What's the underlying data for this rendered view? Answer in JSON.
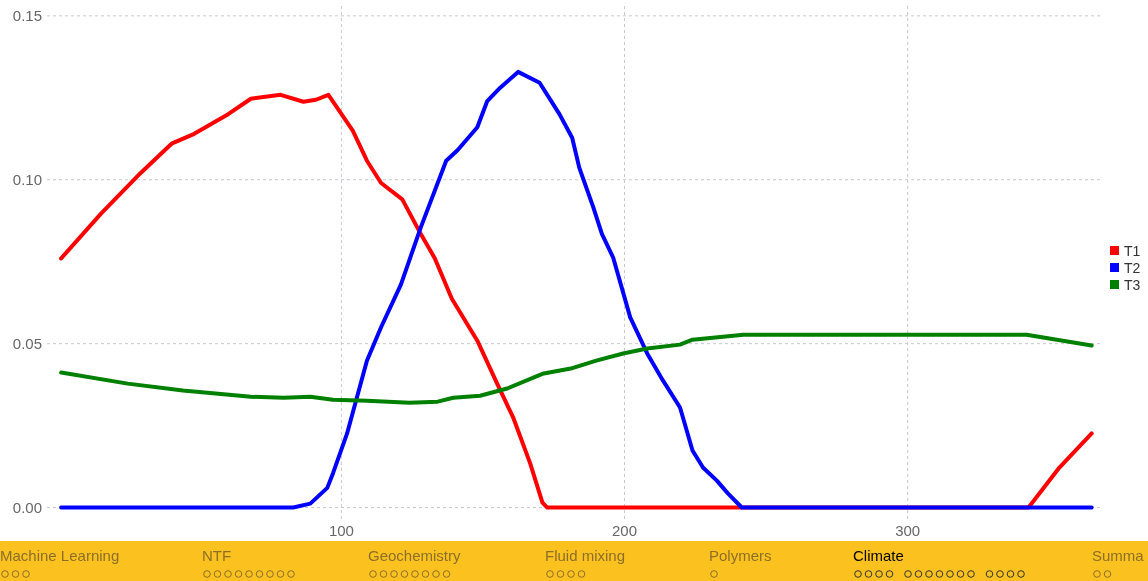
{
  "chart_data": {
    "type": "line",
    "xlim": [
      -4,
      369
    ],
    "xticks": [
      100,
      200,
      300
    ],
    "ylim": [
      -0.0035,
      0.153
    ],
    "yticks": [
      {
        "value": 0,
        "label": "0.00"
      },
      {
        "value": 0.05,
        "label": "0.05"
      },
      {
        "value": 0.1,
        "label": "0.10"
      },
      {
        "value": 0.15,
        "label": "0.15"
      }
    ],
    "grid": true,
    "legend": "right",
    "series": [
      {
        "name": "T1",
        "color": "#ff0000",
        "x": [
          1,
          15,
          29,
          40,
          48,
          60,
          68,
          78.5,
          86.6,
          91,
          95.4,
          104,
          109,
          114,
          121.5,
          128,
          133,
          139,
          148,
          155,
          160.7,
          166.7,
          171,
          172.7,
          200,
          250,
          300,
          342.7,
          353.6,
          365
        ],
        "values": [
          0.076,
          0.0896,
          0.102,
          0.111,
          0.114,
          0.12,
          0.1247,
          0.1259,
          0.1238,
          0.1244,
          0.1259,
          0.115,
          0.1058,
          0.099,
          0.094,
          0.0835,
          0.076,
          0.0637,
          0.0509,
          0.0378,
          0.0274,
          0.0134,
          0.0015,
          0,
          0,
          0,
          0,
          0,
          0.0122,
          0.0226
        ]
      },
      {
        "name": "T2",
        "color": "#0000ff",
        "x": [
          1,
          50,
          83,
          89,
          95,
          97,
          102,
          109,
          114,
          121,
          128,
          137,
          141,
          148,
          151.5,
          156,
          162.4,
          170,
          177,
          181.5,
          184,
          189,
          192,
          196,
          202,
          208,
          213.6,
          219.6,
          224,
          227.7,
          232.6,
          236.5,
          241.4,
          300,
          365
        ],
        "values": [
          0,
          0,
          0,
          0.0012,
          0.006,
          0.0104,
          0.0226,
          0.0448,
          0.055,
          0.068,
          0.0854,
          0.1058,
          0.109,
          0.116,
          0.124,
          0.128,
          0.1329,
          0.1296,
          0.12,
          0.1128,
          0.1037,
          0.0915,
          0.0835,
          0.0762,
          0.058,
          0.047,
          0.0387,
          0.0305,
          0.0174,
          0.0122,
          0.0082,
          0.0043,
          0,
          0,
          0
        ]
      },
      {
        "name": "T3",
        "color": "#008000",
        "x": [
          1,
          24.5,
          44,
          68,
          79.5,
          89,
          97,
          109,
          124,
          134,
          139.5,
          149,
          158.5,
          171,
          181,
          190,
          199.5,
          208,
          219.6,
          224,
          242,
          255,
          300,
          342,
          365
        ],
        "values": [
          0.0412,
          0.0378,
          0.0357,
          0.0338,
          0.0335,
          0.0338,
          0.0329,
          0.0326,
          0.032,
          0.0323,
          0.0335,
          0.0341,
          0.0363,
          0.0408,
          0.0424,
          0.0448,
          0.047,
          0.0485,
          0.0497,
          0.0512,
          0.0527,
          0.0527,
          0.0527,
          0.0527,
          0.0494
        ]
      }
    ],
    "annotations": [
      "Machine Learning",
      "NTF",
      "Geochemistry",
      "Fluid mixing",
      "Polymers",
      "Climate",
      "Summa"
    ]
  }
}
